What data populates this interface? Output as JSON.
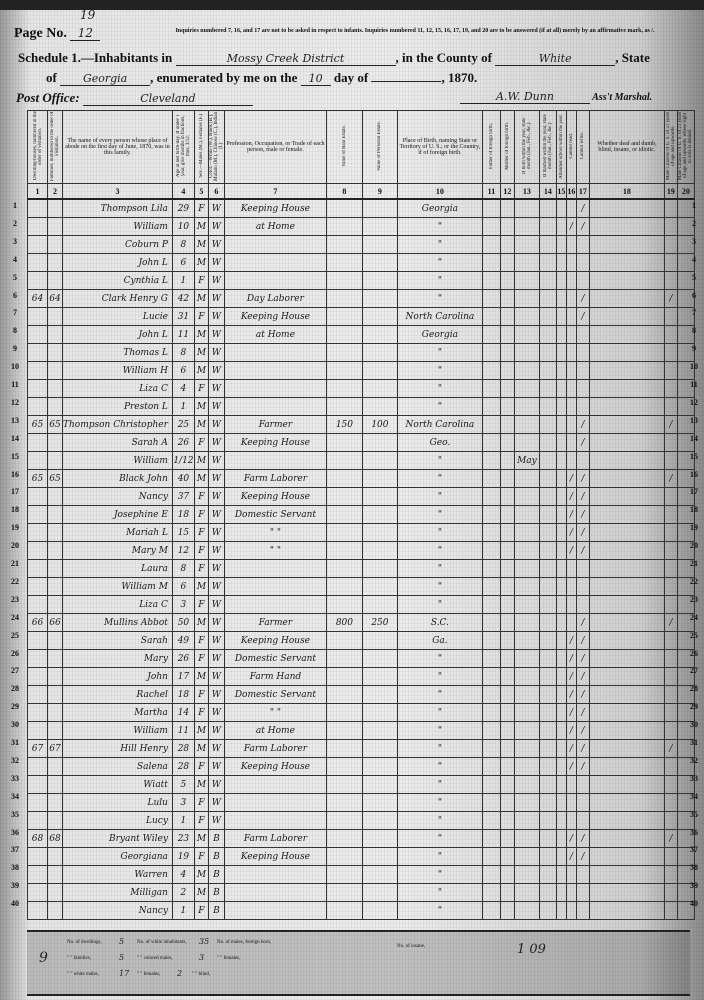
{
  "header": {
    "page_label": "Page No.",
    "page_number": "12",
    "page_number_alt": "19",
    "notice": "Inquiries numbered 7, 16, and 17 are not to be asked in respect to infants. Inquiries numbered 11, 12, 15, 16, 17, 19, and 20 are to be answered (if at all) merely by an affirmative mark, as /.",
    "schedule_label": "Schedule 1.—Inhabitants in",
    "district": "Mossy Creek District",
    "county_label": ", in the County of",
    "county": "White",
    "state_label": ", State",
    "of_label": "of",
    "state": "Georgia",
    "enumerated_label": ", enumerated by me on the",
    "day": "10",
    "day_of_label": "day of",
    "month": "",
    "year": ", 1870.",
    "post_office_label": "Post Office:",
    "post_office": "Cleveland",
    "marshal": "A.W. Dunn",
    "marshal_label": "Ass't Marshal."
  },
  "columns": [
    {
      "num": "1",
      "label": "Dwelling-houses, numbered in the order of visitation."
    },
    {
      "num": "2",
      "label": "Families, numbered in the order of visitation."
    },
    {
      "num": "3",
      "label": "The name of every person whose place of abode on the first day of June, 1870, was in this family."
    },
    {
      "num": "4",
      "label": "Age at last birth-day. If under 1 year, give months in fractions, thus, 3/12."
    },
    {
      "num": "5",
      "label": "Sex.—Males (M.), Females (F.)"
    },
    {
      "num": "6",
      "label": "Color.—White (W.), Black (B.), Mulatto (M.), Chinese (C.), Indian (I.)"
    },
    {
      "num": "7",
      "label": "Profession, Occupation, or Trade of each person, male or female."
    },
    {
      "num": "8",
      "label": "Value of Real Estate."
    },
    {
      "num": "9",
      "label": "Value of Personal Estate."
    },
    {
      "num": "10",
      "label": "Place of Birth, naming State or Territory of U. S.; or the Country, if of foreign birth."
    },
    {
      "num": "11",
      "label": "Father of foreign birth."
    },
    {
      "num": "12",
      "label": "Mother of foreign birth."
    },
    {
      "num": "13",
      "label": "If born within the year, state month (Jan., Feb., &c.)"
    },
    {
      "num": "14",
      "label": "If married within the year, state month (Jan., Feb., &c.)"
    },
    {
      "num": "15",
      "label": "Attended school within the year."
    },
    {
      "num": "16",
      "label": "Cannot read."
    },
    {
      "num": "17",
      "label": "Cannot write."
    },
    {
      "num": "18",
      "label": "Whether deaf and dumb, blind, insane, or idiotic."
    },
    {
      "num": "19",
      "label": "Male Citizens of U. S. of 21 years of age and upwards."
    },
    {
      "num": "20",
      "label": "Male Citizens of U. S. of 21 years of age and upwards, whose right to vote is denied."
    }
  ],
  "group_headers": {
    "description": "Description.",
    "value_estate": "Value of Real Estate Owned.",
    "parentage": "Parentage.",
    "education": "Education.",
    "constitutional": "Constitutional Relations."
  },
  "rows": [
    {
      "n": "1",
      "dw": "",
      "fam": "",
      "name": "Thompson Lila",
      "age": "29",
      "sex": "F",
      "color": "W",
      "occ": "Keeping House",
      "re": "",
      "pe": "",
      "birth": "Georgia",
      "c13": "",
      "c16": "",
      "c17": "/",
      "c19": ""
    },
    {
      "n": "2",
      "dw": "",
      "fam": "",
      "name": "William",
      "age": "10",
      "sex": "M",
      "color": "W",
      "occ": "at Home",
      "re": "",
      "pe": "",
      "birth": "\"",
      "c13": "",
      "c16": "/",
      "c17": "/",
      "c19": ""
    },
    {
      "n": "3",
      "dw": "",
      "fam": "",
      "name": "Coburn P",
      "age": "8",
      "sex": "M",
      "color": "W",
      "occ": "",
      "re": "",
      "pe": "",
      "birth": "\"",
      "c13": "",
      "c16": "",
      "c17": "",
      "c19": ""
    },
    {
      "n": "4",
      "dw": "",
      "fam": "",
      "name": "John L",
      "age": "6",
      "sex": "M",
      "color": "W",
      "occ": "",
      "re": "",
      "pe": "",
      "birth": "\"",
      "c13": "",
      "c16": "",
      "c17": "",
      "c19": ""
    },
    {
      "n": "5",
      "dw": "",
      "fam": "",
      "name": "Cynthia L",
      "age": "1",
      "sex": "F",
      "color": "W",
      "occ": "",
      "re": "",
      "pe": "",
      "birth": "\"",
      "c13": "",
      "c16": "",
      "c17": "",
      "c19": ""
    },
    {
      "n": "6",
      "dw": "64",
      "fam": "64",
      "name": "Clark Henry G",
      "age": "42",
      "sex": "M",
      "color": "W",
      "occ": "Day Laborer",
      "re": "",
      "pe": "",
      "birth": "\"",
      "c13": "",
      "c16": "",
      "c17": "/",
      "c19": "/"
    },
    {
      "n": "7",
      "dw": "",
      "fam": "",
      "name": "Lucie",
      "age": "31",
      "sex": "F",
      "color": "W",
      "occ": "Keeping House",
      "re": "",
      "pe": "",
      "birth": "North Carolina",
      "c13": "",
      "c16": "",
      "c17": "/",
      "c19": ""
    },
    {
      "n": "8",
      "dw": "",
      "fam": "",
      "name": "John L",
      "age": "11",
      "sex": "M",
      "color": "W",
      "occ": "at Home",
      "re": "",
      "pe": "",
      "birth": "Georgia",
      "c13": "",
      "c16": "",
      "c17": "",
      "c19": ""
    },
    {
      "n": "9",
      "dw": "",
      "fam": "",
      "name": "Thomas L",
      "age": "8",
      "sex": "M",
      "color": "W",
      "occ": "",
      "re": "",
      "pe": "",
      "birth": "\"",
      "c13": "",
      "c16": "",
      "c17": "",
      "c19": ""
    },
    {
      "n": "10",
      "dw": "",
      "fam": "",
      "name": "William H",
      "age": "6",
      "sex": "M",
      "color": "W",
      "occ": "",
      "re": "",
      "pe": "",
      "birth": "\"",
      "c13": "",
      "c16": "",
      "c17": "",
      "c19": ""
    },
    {
      "n": "11",
      "dw": "",
      "fam": "",
      "name": "Liza C",
      "age": "4",
      "sex": "F",
      "color": "W",
      "occ": "",
      "re": "",
      "pe": "",
      "birth": "\"",
      "c13": "",
      "c16": "",
      "c17": "",
      "c19": ""
    },
    {
      "n": "12",
      "dw": "",
      "fam": "",
      "name": "Preston L",
      "age": "1",
      "sex": "M",
      "color": "W",
      "occ": "",
      "re": "",
      "pe": "",
      "birth": "\"",
      "c13": "",
      "c16": "",
      "c17": "",
      "c19": ""
    },
    {
      "n": "13",
      "dw": "65",
      "fam": "65",
      "name": "Thompson Christopher",
      "age": "25",
      "sex": "M",
      "color": "W",
      "occ": "Farmer",
      "re": "150",
      "pe": "100",
      "birth": "North Carolina",
      "c13": "",
      "c16": "",
      "c17": "/",
      "c19": "/"
    },
    {
      "n": "14",
      "dw": "",
      "fam": "",
      "name": "Sarah A",
      "age": "26",
      "sex": "F",
      "color": "W",
      "occ": "Keeping House",
      "re": "",
      "pe": "",
      "birth": "Geo.",
      "c13": "",
      "c16": "",
      "c17": "/",
      "c19": ""
    },
    {
      "n": "15",
      "dw": "",
      "fam": "",
      "name": "William",
      "age": "1/12",
      "sex": "M",
      "color": "W",
      "occ": "",
      "re": "",
      "pe": "",
      "birth": "\"",
      "c13": "May",
      "c16": "",
      "c17": "",
      "c19": ""
    },
    {
      "n": "16",
      "dw": "65",
      "fam": "65",
      "name": "Black John",
      "age": "40",
      "sex": "M",
      "color": "W",
      "occ": "Farm Laborer",
      "re": "",
      "pe": "",
      "birth": "\"",
      "c13": "",
      "c16": "/",
      "c17": "/",
      "c19": "/"
    },
    {
      "n": "17",
      "dw": "",
      "fam": "",
      "name": "Nancy",
      "age": "37",
      "sex": "F",
      "color": "W",
      "occ": "Keeping House",
      "re": "",
      "pe": "",
      "birth": "\"",
      "c13": "",
      "c16": "/",
      "c17": "/",
      "c19": ""
    },
    {
      "n": "18",
      "dw": "",
      "fam": "",
      "name": "Josephine E",
      "age": "18",
      "sex": "F",
      "color": "W",
      "occ": "Domestic Servant",
      "re": "",
      "pe": "",
      "birth": "\"",
      "c13": "",
      "c16": "/",
      "c17": "/",
      "c19": ""
    },
    {
      "n": "19",
      "dw": "",
      "fam": "",
      "name": "Mariah L",
      "age": "15",
      "sex": "F",
      "color": "W",
      "occ": "\"        \"",
      "re": "",
      "pe": "",
      "birth": "\"",
      "c13": "",
      "c16": "/",
      "c17": "/",
      "c19": ""
    },
    {
      "n": "20",
      "dw": "",
      "fam": "",
      "name": "Mary M",
      "age": "12",
      "sex": "F",
      "color": "W",
      "occ": "\"        \"",
      "re": "",
      "pe": "",
      "birth": "\"",
      "c13": "",
      "c16": "/",
      "c17": "/",
      "c19": ""
    },
    {
      "n": "21",
      "dw": "",
      "fam": "",
      "name": "Laura",
      "age": "8",
      "sex": "F",
      "color": "W",
      "occ": "",
      "re": "",
      "pe": "",
      "birth": "\"",
      "c13": "",
      "c16": "",
      "c17": "",
      "c19": ""
    },
    {
      "n": "22",
      "dw": "",
      "fam": "",
      "name": "William M",
      "age": "6",
      "sex": "M",
      "color": "W",
      "occ": "",
      "re": "",
      "pe": "",
      "birth": "\"",
      "c13": "",
      "c16": "",
      "c17": "",
      "c19": ""
    },
    {
      "n": "23",
      "dw": "",
      "fam": "",
      "name": "Liza C",
      "age": "3",
      "sex": "F",
      "color": "W",
      "occ": "",
      "re": "",
      "pe": "",
      "birth": "\"",
      "c13": "",
      "c16": "",
      "c17": "",
      "c19": ""
    },
    {
      "n": "24",
      "dw": "66",
      "fam": "66",
      "name": "Mullins Abbot",
      "age": "50",
      "sex": "M",
      "color": "W",
      "occ": "Farmer",
      "re": "800",
      "pe": "250",
      "birth": "S.C.",
      "c13": "",
      "c16": "",
      "c17": "/",
      "c19": "/"
    },
    {
      "n": "25",
      "dw": "",
      "fam": "",
      "name": "Sarah",
      "age": "49",
      "sex": "F",
      "color": "W",
      "occ": "Keeping House",
      "re": "",
      "pe": "",
      "birth": "Ga.",
      "c13": "",
      "c16": "/",
      "c17": "/",
      "c19": ""
    },
    {
      "n": "26",
      "dw": "",
      "fam": "",
      "name": "Mary",
      "age": "26",
      "sex": "F",
      "color": "W",
      "occ": "Domestic Servant",
      "re": "",
      "pe": "",
      "birth": "\"",
      "c13": "",
      "c16": "/",
      "c17": "/",
      "c19": ""
    },
    {
      "n": "27",
      "dw": "",
      "fam": "",
      "name": "John",
      "age": "17",
      "sex": "M",
      "color": "W",
      "occ": "Farm Hand",
      "re": "",
      "pe": "",
      "birth": "\"",
      "c13": "",
      "c16": "/",
      "c17": "/",
      "c19": ""
    },
    {
      "n": "28",
      "dw": "",
      "fam": "",
      "name": "Rachel",
      "age": "18",
      "sex": "F",
      "color": "W",
      "occ": "Domestic Servant",
      "re": "",
      "pe": "",
      "birth": "\"",
      "c13": "",
      "c16": "/",
      "c17": "/",
      "c19": ""
    },
    {
      "n": "29",
      "dw": "",
      "fam": "",
      "name": "Martha",
      "age": "14",
      "sex": "F",
      "color": "W",
      "occ": "\"        \"",
      "re": "",
      "pe": "",
      "birth": "\"",
      "c13": "",
      "c16": "/",
      "c17": "/",
      "c19": ""
    },
    {
      "n": "30",
      "dw": "",
      "fam": "",
      "name": "William",
      "age": "11",
      "sex": "M",
      "color": "W",
      "occ": "at Home",
      "re": "",
      "pe": "",
      "birth": "\"",
      "c13": "",
      "c16": "/",
      "c17": "/",
      "c19": ""
    },
    {
      "n": "31",
      "dw": "67",
      "fam": "67",
      "name": "Hill Henry",
      "age": "28",
      "sex": "M",
      "color": "W",
      "occ": "Farm Laborer",
      "re": "",
      "pe": "",
      "birth": "\"",
      "c13": "",
      "c16": "/",
      "c17": "/",
      "c19": "/"
    },
    {
      "n": "32",
      "dw": "",
      "fam": "",
      "name": "Salena",
      "age": "28",
      "sex": "F",
      "color": "W",
      "occ": "Keeping House",
      "re": "",
      "pe": "",
      "birth": "\"",
      "c13": "",
      "c16": "/",
      "c17": "/",
      "c19": ""
    },
    {
      "n": "33",
      "dw": "",
      "fam": "",
      "name": "Wiatt",
      "age": "5",
      "sex": "M",
      "color": "W",
      "occ": "",
      "re": "",
      "pe": "",
      "birth": "\"",
      "c13": "",
      "c16": "",
      "c17": "",
      "c19": ""
    },
    {
      "n": "34",
      "dw": "",
      "fam": "",
      "name": "Lulu",
      "age": "3",
      "sex": "F",
      "color": "W",
      "occ": "",
      "re": "",
      "pe": "",
      "birth": "\"",
      "c13": "",
      "c16": "",
      "c17": "",
      "c19": ""
    },
    {
      "n": "35",
      "dw": "",
      "fam": "",
      "name": "Lucy",
      "age": "1",
      "sex": "F",
      "color": "W",
      "occ": "",
      "re": "",
      "pe": "",
      "birth": "\"",
      "c13": "",
      "c16": "",
      "c17": "",
      "c19": ""
    },
    {
      "n": "36",
      "dw": "68",
      "fam": "68",
      "name": "Bryant Wiley",
      "age": "23",
      "sex": "M",
      "color": "B",
      "occ": "Farm Laborer",
      "re": "",
      "pe": "",
      "birth": "\"",
      "c13": "",
      "c16": "/",
      "c17": "/",
      "c19": "/"
    },
    {
      "n": "37",
      "dw": "",
      "fam": "",
      "name": "Georgiana",
      "age": "19",
      "sex": "F",
      "color": "B",
      "occ": "Keeping House",
      "re": "",
      "pe": "",
      "birth": "\"",
      "c13": "",
      "c16": "/",
      "c17": "/",
      "c19": ""
    },
    {
      "n": "38",
      "dw": "",
      "fam": "",
      "name": "Warren",
      "age": "4",
      "sex": "M",
      "color": "B",
      "occ": "",
      "re": "",
      "pe": "",
      "birth": "\"",
      "c13": "",
      "c16": "",
      "c17": "",
      "c19": ""
    },
    {
      "n": "39",
      "dw": "",
      "fam": "",
      "name": "Milligan",
      "age": "2",
      "sex": "M",
      "color": "B",
      "occ": "",
      "re": "",
      "pe": "",
      "birth": "\"",
      "c13": "",
      "c16": "",
      "c17": "",
      "c19": ""
    },
    {
      "n": "40",
      "dw": "",
      "fam": "",
      "name": "Nancy",
      "age": "1",
      "sex": "F",
      "color": "B",
      "occ": "",
      "re": "",
      "pe": "",
      "birth": "\"",
      "c13": "",
      "c16": "",
      "c17": "",
      "c19": ""
    }
  ],
  "footer": {
    "page_mark": "9",
    "dwellings_label": "No. of dwellings,",
    "dwellings": "5",
    "white_inhabitants_label": "No. of white inhabitants,",
    "white_inhabitants": "35",
    "foreign_males_label": "No. of males, foreign born,",
    "families_label": "\" \" families,",
    "families": "5",
    "colored_males_label": "\" \" colored males,",
    "colored_males": "3",
    "females_label": "\" \" females,",
    "white_males_label": "\" \" white males,",
    "white_males": "17",
    "white_females_label": "\" \" females,",
    "white_females": "2",
    "blind_label": "\" \" blind,",
    "insane_label": "No. of insane,",
    "tally": "1   09"
  }
}
